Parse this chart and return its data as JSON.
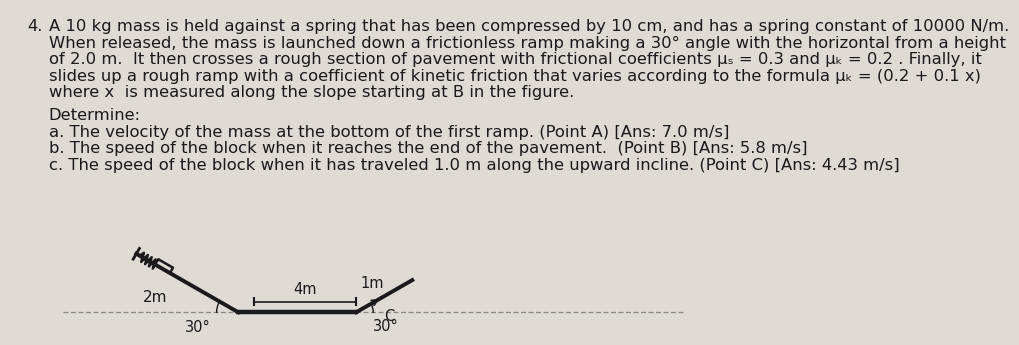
{
  "background_color": "#dedad4",
  "text_color": "#1a1a1a",
  "title_number": "4.",
  "line1": "A 10 kg mass is held against a spring that has been compressed by 10 cm, and has a spring constant of 10000 N/m.",
  "line2": "When released, the mass is launched down a frictionless ramp making a 30° angle with the horizontal from a height",
  "line3": "of 2.0 m.  It then crosses a rough section of pavement with frictional coefficients μₛ = 0.3 and μₖ = 0.2 . Finally, it",
  "line4": "slides up a rough ramp with a coefficient of kinetic friction that varies according to the formula μₖ = (0.2 + 0.1 x)",
  "line5": "where x  is measured along the slope starting at B in the figure.",
  "determine_label": "Determine:",
  "parta": "a. The velocity of the mass at the bottom of the first ramp. (Point A) [Ans: 7.0 m/s]",
  "partb": "b. The speed of the block when it reaches the end of the pavement.  (Point B) [Ans: 5.8 m/s]",
  "partc": "c. The speed of the block when it has traveled 1.0 m along the upward incline. (Point C) [Ans: 4.43 m/s]",
  "ramp1_height_label": "2m",
  "ramp1_angle_label": "30°",
  "pavement_label": "4m",
  "ramp2_dist_label": "1m",
  "ramp2_angle_label": "30°",
  "point_c_label": "C",
  "line_color": "#1a1a1a",
  "dash_color": "#888888"
}
